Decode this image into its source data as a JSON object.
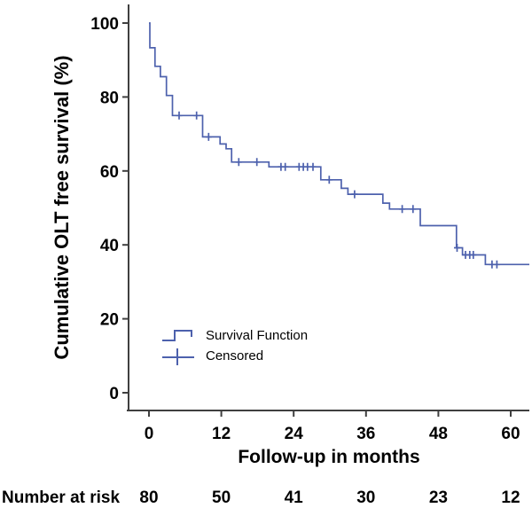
{
  "figure": {
    "background": "#ffffff"
  },
  "chart_data": {
    "type": "line",
    "subtype": "kaplan-meier-step",
    "title": "",
    "xlabel": "Follow-up in months",
    "ylabel": "Cumulative OLT free survival (%)",
    "x_ticks": [
      0,
      12,
      24,
      36,
      48,
      60
    ],
    "y_ticks": [
      0,
      20,
      40,
      60,
      80,
      100
    ],
    "xlim": [
      -3.4,
      63.2
    ],
    "ylim": [
      -5,
      105
    ],
    "grid": false,
    "line_color": "#4d61ad",
    "axis_color": "#3f3f3f",
    "text_color": "#000000",
    "legend": {
      "position": "inside-lower-left",
      "entries": [
        "Survival Function",
        "Censored"
      ]
    },
    "series": [
      {
        "name": "Survival Function",
        "type": "step",
        "points": [
          [
            0,
            100
          ],
          [
            0.15,
            93.3
          ],
          [
            1.0,
            88.3
          ],
          [
            1.9,
            85.5
          ],
          [
            2.9,
            80.4
          ],
          [
            3.9,
            75.0
          ],
          [
            8.9,
            69.2
          ],
          [
            11.8,
            67.3
          ],
          [
            12.8,
            66.0
          ],
          [
            13.7,
            62.4
          ],
          [
            19.9,
            61.1
          ],
          [
            28.5,
            57.6
          ],
          [
            31.9,
            55.3
          ],
          [
            33.0,
            53.7
          ],
          [
            38.8,
            51.3
          ],
          [
            39.9,
            49.7
          ],
          [
            45.0,
            45.2
          ],
          [
            51.0,
            39.2
          ],
          [
            52.0,
            37.3
          ],
          [
            55.8,
            34.7
          ]
        ]
      }
    ],
    "curve_end_time": 63.2,
    "censored": [
      [
        5.0,
        75.0
      ],
      [
        7.9,
        75.0
      ],
      [
        9.9,
        69.2
      ],
      [
        14.9,
        62.4
      ],
      [
        17.9,
        62.4
      ],
      [
        21.9,
        61.1
      ],
      [
        22.6,
        61.1
      ],
      [
        24.9,
        61.1
      ],
      [
        25.6,
        61.1
      ],
      [
        26.3,
        61.1
      ],
      [
        27.2,
        61.1
      ],
      [
        29.9,
        57.6
      ],
      [
        34.1,
        53.7
      ],
      [
        42.0,
        49.7
      ],
      [
        43.8,
        49.7
      ],
      [
        51.1,
        39.2
      ],
      [
        52.5,
        37.3
      ],
      [
        53.2,
        37.3
      ],
      [
        53.8,
        37.3
      ],
      [
        56.9,
        34.7
      ],
      [
        57.7,
        34.7
      ]
    ],
    "number_at_risk": {
      "label": "Number at risk",
      "times": [
        0,
        12,
        24,
        36,
        48,
        60
      ],
      "values": [
        80,
        50,
        41,
        30,
        23,
        12
      ]
    }
  }
}
